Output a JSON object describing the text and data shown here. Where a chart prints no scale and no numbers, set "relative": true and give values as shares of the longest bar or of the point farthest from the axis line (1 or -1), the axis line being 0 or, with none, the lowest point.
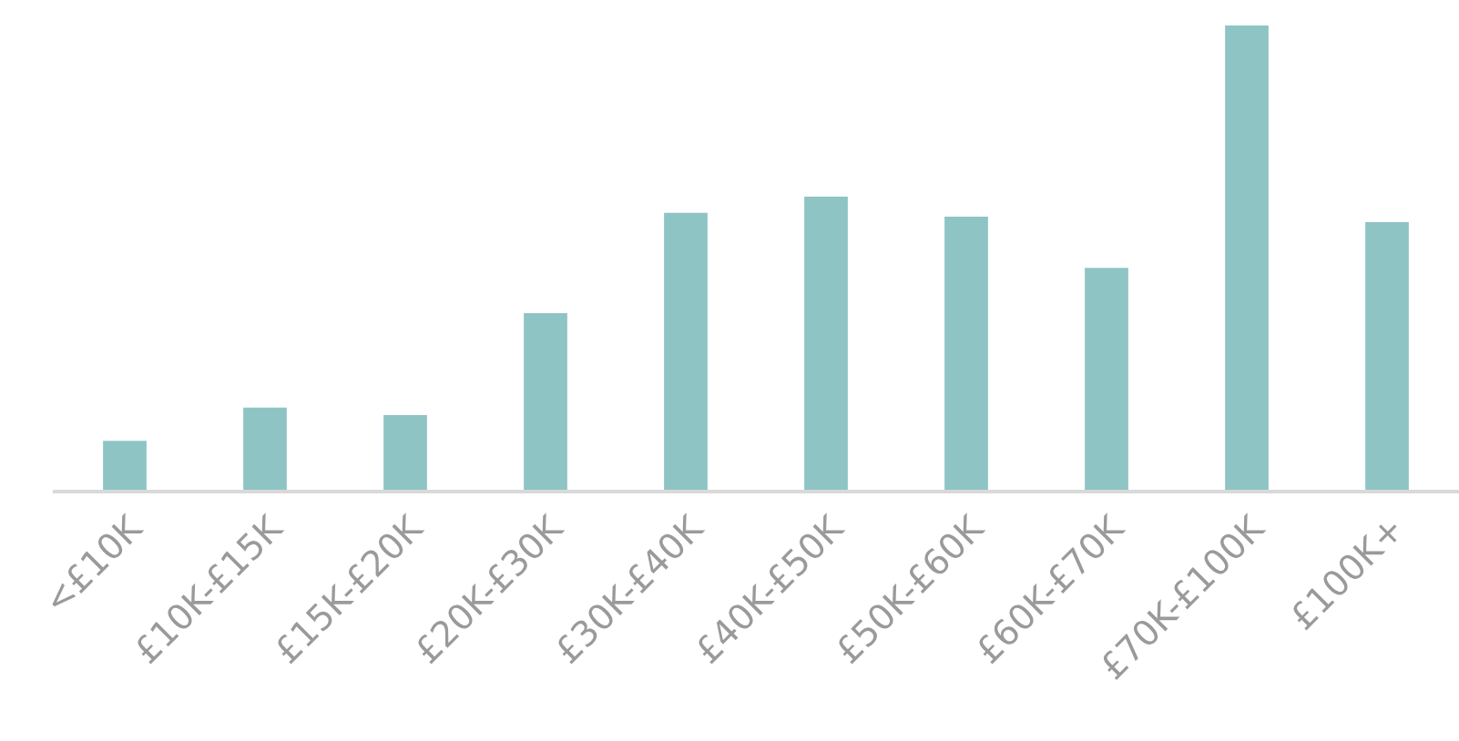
{
  "chart_data": {
    "type": "bar",
    "relative": true,
    "categories": [
      "<£10K",
      "£10K-£15K",
      "£15K-£20K",
      "£20K-£30K",
      "£30K-£40K",
      "£40K-£50K",
      "£50K-£60K",
      "£60K-£70K",
      "£70K-£100K",
      "£100K+"
    ],
    "values": [
      0.109,
      0.18,
      0.164,
      0.383,
      0.598,
      0.633,
      0.59,
      0.48,
      1,
      0.578
    ],
    "color": "#8fc4c5",
    "grid": false,
    "legend": false
  }
}
